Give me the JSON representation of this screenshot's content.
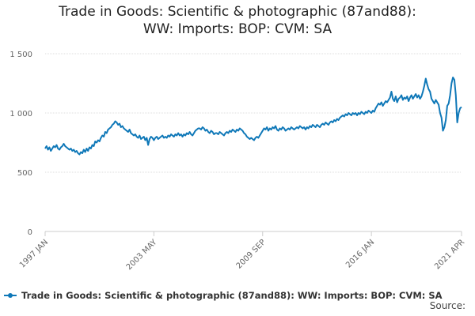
{
  "chart_data": {
    "type": "line",
    "title": "Trade in Goods: Scientific & photographic (87and88): WW: Imports: BOP: CVM: SA",
    "source": "Source:",
    "categories": [
      "1997 JAN",
      null,
      null,
      null,
      null,
      null,
      null,
      null,
      null,
      null,
      null,
      null,
      null,
      null,
      null,
      null,
      null,
      null,
      null,
      null,
      null,
      null,
      null,
      null,
      null,
      null,
      null,
      null,
      null,
      null,
      null,
      null,
      null,
      null,
      null,
      null,
      null,
      null,
      null,
      null,
      null,
      null,
      null,
      null,
      null,
      null,
      null,
      null,
      null,
      null,
      null,
      null,
      null,
      null,
      null,
      null,
      null,
      null,
      null,
      null,
      null,
      null,
      null,
      null,
      null,
      null,
      null,
      null,
      null,
      null,
      null,
      null,
      null,
      null,
      null,
      null,
      "2003 MAY",
      null,
      null,
      null,
      null,
      null,
      null,
      null,
      null,
      null,
      null,
      null,
      null,
      null,
      null,
      null,
      null,
      null,
      null,
      null,
      null,
      null,
      null,
      null,
      null,
      null,
      null,
      null,
      null,
      null,
      null,
      null,
      null,
      null,
      null,
      null,
      null,
      null,
      null,
      null,
      null,
      null,
      null,
      null,
      null,
      null,
      null,
      null,
      null,
      null,
      null,
      null,
      null,
      null,
      null,
      null,
      null,
      null,
      null,
      null,
      null,
      null,
      null,
      null,
      null,
      null,
      null,
      null,
      null,
      null,
      null,
      null,
      null,
      null,
      null,
      null,
      "2009 SEP",
      null,
      null,
      null,
      null,
      null,
      null,
      null,
      null,
      null,
      null,
      null,
      null,
      null,
      null,
      null,
      null,
      null,
      null,
      null,
      null,
      null,
      null,
      null,
      null,
      null,
      null,
      null,
      null,
      null,
      null,
      null,
      null,
      null,
      null,
      null,
      null,
      null,
      null,
      null,
      null,
      null,
      null,
      null,
      null,
      null,
      null,
      null,
      null,
      null,
      null,
      null,
      null,
      null,
      null,
      null,
      null,
      null,
      null,
      null,
      null,
      null,
      null,
      null,
      null,
      null,
      null,
      null,
      null,
      null,
      null,
      null,
      null,
      null,
      null,
      null,
      "2016 JAN",
      null,
      null,
      null,
      null,
      null,
      null,
      null,
      null,
      null,
      null,
      null,
      null,
      null,
      null,
      null,
      null,
      null,
      null,
      null,
      null,
      null,
      null,
      null,
      null,
      null,
      null,
      null,
      null,
      null,
      null,
      null,
      null,
      null,
      null,
      null,
      null,
      null,
      null,
      null,
      null,
      null,
      null,
      null,
      null,
      null,
      null,
      null,
      null,
      null,
      null,
      null,
      null,
      null,
      null,
      null,
      null,
      null,
      null,
      null,
      null,
      null,
      null,
      "2021 APR"
    ],
    "series": [
      {
        "name": "Trade in Goods: Scientific & photographic (87and88): WW: Imports: BOP: CVM: SA",
        "color": "#0f78b8",
        "values": [
          700,
          720,
          690,
          710,
          680,
          700,
          720,
          710,
          730,
          700,
          690,
          710,
          720,
          740,
          720,
          710,
          700,
          690,
          700,
          680,
          690,
          670,
          680,
          660,
          650,
          670,
          660,
          690,
          670,
          700,
          680,
          710,
          700,
          730,
          720,
          760,
          750,
          770,
          760,
          790,
          810,
          800,
          840,
          830,
          860,
          870,
          880,
          900,
          910,
          930,
          920,
          900,
          910,
          880,
          890,
          870,
          860,
          850,
          840,
          860,
          830,
          820,
          810,
          820,
          800,
          790,
          810,
          780,
          790,
          800,
          770,
          790,
          730,
          780,
          800,
          790,
          770,
          790,
          800,
          780,
          790,
          800,
          810,
          790,
          800,
          790,
          810,
          800,
          820,
          810,
          800,
          820,
          810,
          830,
          810,
          820,
          800,
          820,
          810,
          830,
          820,
          840,
          820,
          810,
          830,
          850,
          860,
          870,
          870,
          860,
          880,
          870,
          850,
          860,
          840,
          830,
          850,
          840,
          820,
          830,
          830,
          820,
          840,
          830,
          820,
          810,
          830,
          840,
          830,
          850,
          840,
          860,
          850,
          840,
          860,
          850,
          870,
          860,
          850,
          830,
          820,
          800,
          790,
          780,
          790,
          780,
          770,
          790,
          800,
          790,
          810,
          830,
          850,
          870,
          860,
          880,
          850,
          870,
          860,
          880,
          870,
          890,
          860,
          850,
          870,
          860,
          880,
          870,
          850,
          860,
          870,
          860,
          880,
          870,
          860,
          870,
          880,
          870,
          890,
          880,
          870,
          880,
          860,
          880,
          870,
          890,
          880,
          900,
          890,
          880,
          900,
          890,
          880,
          900,
          910,
          900,
          920,
          910,
          900,
          920,
          930,
          920,
          940,
          930,
          950,
          940,
          960,
          970,
          980,
          970,
          990,
          980,
          1000,
          990,
          980,
          1000,
          990,
          1000,
          980,
          1000,
          990,
          1010,
          1000,
          990,
          1010,
          1000,
          1020,
          1010,
          1000,
          1020,
          1010,
          1040,
          1060,
          1080,
          1070,
          1090,
          1060,
          1080,
          1100,
          1090,
          1110,
          1130,
          1180,
          1120,
          1100,
          1140,
          1090,
          1120,
          1130,
          1150,
          1110,
          1130,
          1120,
          1140,
          1100,
          1130,
          1150,
          1120,
          1140,
          1160,
          1130,
          1150,
          1120,
          1140,
          1180,
          1230,
          1290,
          1240,
          1200,
          1180,
          1120,
          1100,
          1080,
          1110,
          1090,
          1070,
          1000,
          960,
          850,
          880,
          940,
          1060,
          1080,
          1150,
          1250,
          1300,
          1280,
          1150,
          920,
          1000,
          1040,
          1050
        ]
      }
    ],
    "ylim": [
      0,
      1500
    ],
    "yticks": [
      0,
      500,
      {
        "value": 1000,
        "label": "1 000"
      },
      {
        "value": 1500,
        "label": "1 500"
      }
    ],
    "grid": true
  }
}
